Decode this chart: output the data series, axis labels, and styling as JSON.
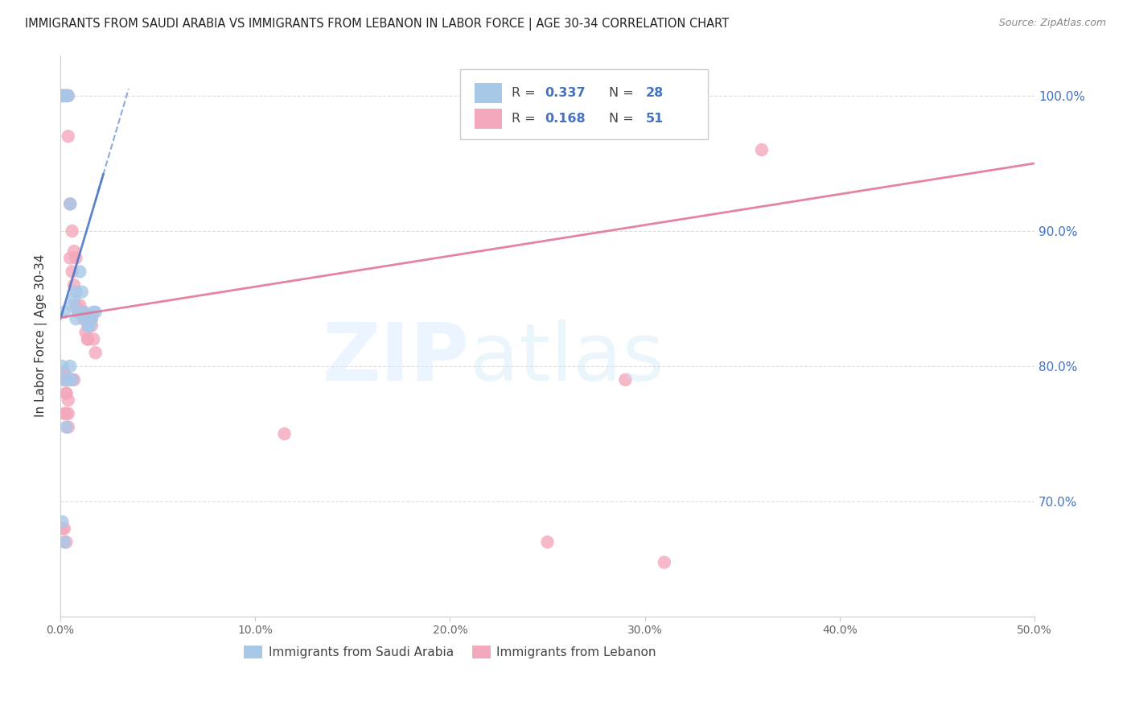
{
  "title": "IMMIGRANTS FROM SAUDI ARABIA VS IMMIGRANTS FROM LEBANON IN LABOR FORCE | AGE 30-34 CORRELATION CHART",
  "source": "Source: ZipAtlas.com",
  "ylabel": "In Labor Force | Age 30-34",
  "xlim": [
    0.0,
    0.5
  ],
  "ylim": [
    0.615,
    1.03
  ],
  "saudi_color": "#a8c8e8",
  "lebanon_color": "#f4a8bc",
  "saudi_line_color": "#4472c4",
  "lebanon_line_color": "#e07090",
  "saudi_R": 0.337,
  "saudi_N": 28,
  "lebanon_R": 0.168,
  "lebanon_N": 51,
  "y_ticks": [
    0.7,
    0.8,
    0.9,
    1.0
  ],
  "y_tick_labels": [
    "70.0%",
    "80.0%",
    "90.0%",
    "100.0%"
  ],
  "x_ticks": [
    0.0,
    0.1,
    0.2,
    0.3,
    0.4,
    0.5
  ],
  "x_tick_labels": [
    "0.0%",
    "10.0%",
    "20.0%",
    "30.0%",
    "40.0%",
    "50.0%"
  ],
  "saudi_x": [
    0.001,
    0.002,
    0.003,
    0.004,
    0.005,
    0.006,
    0.007,
    0.008,
    0.009,
    0.01,
    0.011,
    0.012,
    0.013,
    0.014,
    0.015,
    0.016,
    0.017,
    0.018,
    0.002,
    0.004,
    0.001,
    0.003,
    0.008,
    0.005,
    0.001,
    0.002,
    0.006,
    0.001
  ],
  "saudi_y": [
    1.0,
    1.0,
    1.0,
    1.0,
    0.92,
    0.845,
    0.85,
    0.855,
    0.84,
    0.87,
    0.855,
    0.84,
    0.835,
    0.83,
    0.83,
    0.835,
    0.84,
    0.84,
    0.84,
    0.79,
    0.685,
    0.755,
    0.835,
    0.8,
    0.8,
    0.67,
    0.79,
    0.79
  ],
  "lebanon_x": [
    0.001,
    0.002,
    0.003,
    0.003,
    0.004,
    0.004,
    0.005,
    0.005,
    0.006,
    0.006,
    0.007,
    0.007,
    0.008,
    0.008,
    0.009,
    0.01,
    0.01,
    0.011,
    0.012,
    0.012,
    0.013,
    0.014,
    0.014,
    0.015,
    0.016,
    0.016,
    0.017,
    0.018,
    0.002,
    0.003,
    0.004,
    0.002,
    0.003,
    0.004,
    0.005,
    0.006,
    0.007,
    0.001,
    0.003,
    0.001,
    0.002,
    0.003,
    0.004,
    0.29,
    0.001,
    0.002,
    0.003,
    0.36,
    0.25,
    0.31,
    0.115
  ],
  "lebanon_y": [
    1.0,
    1.0,
    1.0,
    1.0,
    1.0,
    0.97,
    0.88,
    0.92,
    0.9,
    0.87,
    0.885,
    0.86,
    0.88,
    0.845,
    0.84,
    0.845,
    0.84,
    0.84,
    0.84,
    0.835,
    0.825,
    0.82,
    0.82,
    0.835,
    0.83,
    0.835,
    0.82,
    0.81,
    0.795,
    0.78,
    0.765,
    0.79,
    0.78,
    0.775,
    0.79,
    0.79,
    0.79,
    1.0,
    0.79,
    0.795,
    0.765,
    0.765,
    0.755,
    0.79,
    0.68,
    0.68,
    0.67,
    0.96,
    0.67,
    0.655,
    0.75
  ],
  "watermark_zip_color": "#c8ddf0",
  "watermark_atlas_color": "#b8d8f0"
}
